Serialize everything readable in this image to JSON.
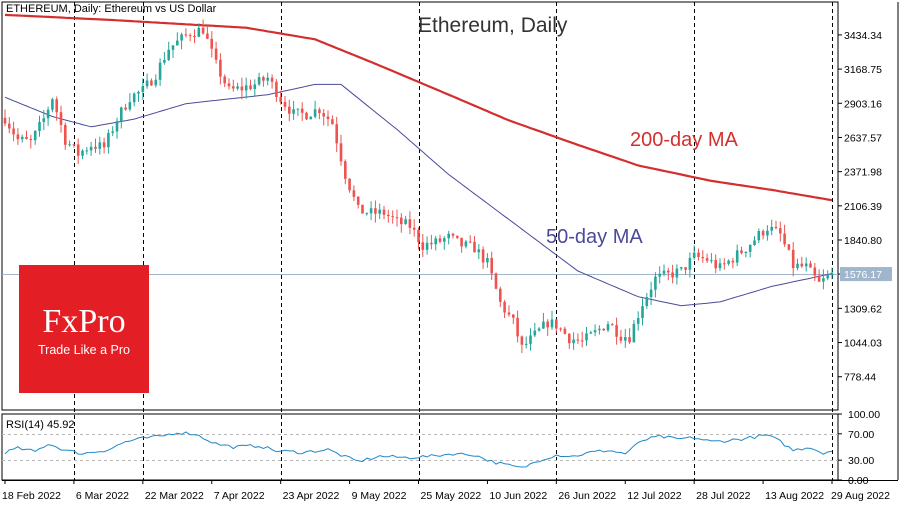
{
  "header": {
    "symbol_label": "ETHEREUM, Daily:  Ethereum vs US Dollar",
    "title": "Ethereum, Daily"
  },
  "rsi_panel": {
    "label": "RSI(14) 45.92"
  },
  "annotations": {
    "ma200_label": "200-day MA",
    "ma50_label": "50-day MA"
  },
  "logo": {
    "brand": "FxPro",
    "tagline": "Trade Like a Pro"
  },
  "colors": {
    "bull_candle": "#26a69a",
    "bear_candle": "#ef5350",
    "ma200": "#d32f2f",
    "ma50": "#4a4a9a",
    "rsi_line": "#1e88c8",
    "current_price_line": "#9fb6cc",
    "logo_bg": "#e31e24"
  },
  "chart_data": [
    {
      "type": "candlestick",
      "title": "Ethereum, Daily",
      "y_ticks": [
        "3434.34",
        "3168.75",
        "2903.16",
        "2637.57",
        "2371.98",
        "2106.39",
        "1840.80",
        "1576.17",
        "1309.62",
        "1044.03",
        "778.44"
      ],
      "ylim": [
        520,
        3690
      ],
      "current_price": "1576.17",
      "x_ticks": [
        "18 Feb 2022",
        "6 Mar 2022",
        "22 Mar 2022",
        "7 Apr 2022",
        "23 Apr 2022",
        "9 May 2022",
        "25 May 2022",
        "10 Jun 2022",
        "26 Jun 2022",
        "12 Jul 2022",
        "28 Jul 2022",
        "13 Aug 2022",
        "29 Aug 2022"
      ],
      "dashed_vertical_dates": [
        "6 Mar 2022",
        "22 Mar 2022",
        "23 Apr 2022",
        "25 May 2022",
        "26 Jun 2022",
        "28 Jul 2022",
        "29 Aug 2022"
      ],
      "close_anchors": [
        [
          "2022-02-18",
          2790
        ],
        [
          "2022-02-21",
          2620
        ],
        [
          "2022-02-24",
          2600
        ],
        [
          "2022-02-27",
          2780
        ],
        [
          "2022-03-01",
          2950
        ],
        [
          "2022-03-04",
          2620
        ],
        [
          "2022-03-07",
          2510
        ],
        [
          "2022-03-10",
          2580
        ],
        [
          "2022-03-13",
          2560
        ],
        [
          "2022-03-16",
          2780
        ],
        [
          "2022-03-19",
          2950
        ],
        [
          "2022-03-22",
          3000
        ],
        [
          "2022-03-25",
          3130
        ],
        [
          "2022-03-28",
          3330
        ],
        [
          "2022-04-02",
          3450
        ],
        [
          "2022-04-05",
          3480
        ],
        [
          "2022-04-08",
          3200
        ],
        [
          "2022-04-11",
          3000
        ],
        [
          "2022-04-14",
          3020
        ],
        [
          "2022-04-17",
          3050
        ],
        [
          "2022-04-20",
          3100
        ],
        [
          "2022-04-23",
          2940
        ],
        [
          "2022-04-26",
          2820
        ],
        [
          "2022-04-29",
          2820
        ],
        [
          "2022-05-02",
          2860
        ],
        [
          "2022-05-05",
          2750
        ],
        [
          "2022-05-08",
          2350
        ],
        [
          "2022-05-11",
          2070
        ],
        [
          "2022-05-14",
          2050
        ],
        [
          "2022-05-17",
          2050
        ],
        [
          "2022-05-20",
          1980
        ],
        [
          "2022-05-23",
          1950
        ],
        [
          "2022-05-26",
          1800
        ],
        [
          "2022-05-29",
          1820
        ],
        [
          "2022-06-01",
          1860
        ],
        [
          "2022-06-04",
          1800
        ],
        [
          "2022-06-07",
          1780
        ],
        [
          "2022-06-10",
          1660
        ],
        [
          "2022-06-13",
          1350
        ],
        [
          "2022-06-16",
          1200
        ],
        [
          "2022-06-18",
          1000
        ],
        [
          "2022-06-21",
          1100
        ],
        [
          "2022-06-24",
          1200
        ],
        [
          "2022-06-26",
          1180
        ],
        [
          "2022-06-29",
          1080
        ],
        [
          "2022-07-02",
          1050
        ],
        [
          "2022-07-05",
          1120
        ],
        [
          "2022-07-08",
          1200
        ],
        [
          "2022-07-11",
          1100
        ],
        [
          "2022-07-13",
          1090
        ],
        [
          "2022-07-16",
          1350
        ],
        [
          "2022-07-19",
          1540
        ],
        [
          "2022-07-22",
          1570
        ],
        [
          "2022-07-25",
          1600
        ],
        [
          "2022-07-28",
          1710
        ],
        [
          "2022-07-31",
          1690
        ],
        [
          "2022-08-03",
          1620
        ],
        [
          "2022-08-06",
          1700
        ],
        [
          "2022-08-09",
          1780
        ],
        [
          "2022-08-12",
          1880
        ],
        [
          "2022-08-14",
          1940
        ],
        [
          "2022-08-17",
          1880
        ],
        [
          "2022-08-20",
          1640
        ],
        [
          "2022-08-23",
          1630
        ],
        [
          "2022-08-26",
          1500
        ],
        [
          "2022-08-29",
          1576
        ]
      ],
      "ma50_anchors": [
        [
          "2022-02-18",
          2950
        ],
        [
          "2022-03-01",
          2800
        ],
        [
          "2022-03-10",
          2720
        ],
        [
          "2022-03-20",
          2780
        ],
        [
          "2022-04-01",
          2900
        ],
        [
          "2022-04-20",
          2970
        ],
        [
          "2022-05-01",
          3050
        ],
        [
          "2022-05-07",
          3050
        ],
        [
          "2022-05-20",
          2700
        ],
        [
          "2022-06-01",
          2350
        ],
        [
          "2022-06-15",
          2000
        ],
        [
          "2022-07-01",
          1600
        ],
        [
          "2022-07-15",
          1400
        ],
        [
          "2022-07-25",
          1330
        ],
        [
          "2022-08-03",
          1360
        ],
        [
          "2022-08-15",
          1480
        ],
        [
          "2022-08-29",
          1580
        ]
      ],
      "ma200_anchors": [
        [
          "2022-02-18",
          3590
        ],
        [
          "2022-03-15",
          3550
        ],
        [
          "2022-04-15",
          3490
        ],
        [
          "2022-05-01",
          3400
        ],
        [
          "2022-05-15",
          3210
        ],
        [
          "2022-06-01",
          2970
        ],
        [
          "2022-06-15",
          2770
        ],
        [
          "2022-07-01",
          2580
        ],
        [
          "2022-07-15",
          2420
        ],
        [
          "2022-08-01",
          2300
        ],
        [
          "2022-08-15",
          2230
        ],
        [
          "2022-08-29",
          2150
        ]
      ]
    },
    {
      "type": "line",
      "title": "RSI(14) 45.92",
      "y_ticks": [
        "100.00",
        "70.00",
        "30.00",
        "0.00"
      ],
      "ylim": [
        0,
        100
      ],
      "reference_levels": [
        70,
        30
      ],
      "series_anchors": [
        [
          "2022-02-18",
          42
        ],
        [
          "2022-02-21",
          48
        ],
        [
          "2022-02-25",
          43
        ],
        [
          "2022-02-28",
          55
        ],
        [
          "2022-03-04",
          45
        ],
        [
          "2022-03-08",
          40
        ],
        [
          "2022-03-14",
          46
        ],
        [
          "2022-03-18",
          58
        ],
        [
          "2022-03-22",
          63
        ],
        [
          "2022-03-26",
          66
        ],
        [
          "2022-03-30",
          72
        ],
        [
          "2022-04-03",
          70
        ],
        [
          "2022-04-08",
          55
        ],
        [
          "2022-04-12",
          50
        ],
        [
          "2022-04-18",
          52
        ],
        [
          "2022-04-22",
          44
        ],
        [
          "2022-04-28",
          42
        ],
        [
          "2022-05-04",
          46
        ],
        [
          "2022-05-08",
          35
        ],
        [
          "2022-05-11",
          28
        ],
        [
          "2022-05-16",
          36
        ],
        [
          "2022-05-22",
          34
        ],
        [
          "2022-05-28",
          36
        ],
        [
          "2022-06-02",
          40
        ],
        [
          "2022-06-07",
          38
        ],
        [
          "2022-06-11",
          28
        ],
        [
          "2022-06-15",
          22
        ],
        [
          "2022-06-18",
          18
        ],
        [
          "2022-06-22",
          30
        ],
        [
          "2022-06-26",
          38
        ],
        [
          "2022-06-30",
          36
        ],
        [
          "2022-07-04",
          42
        ],
        [
          "2022-07-08",
          45
        ],
        [
          "2022-07-12",
          40
        ],
        [
          "2022-07-16",
          60
        ],
        [
          "2022-07-20",
          66
        ],
        [
          "2022-07-24",
          62
        ],
        [
          "2022-07-28",
          64
        ],
        [
          "2022-08-01",
          58
        ],
        [
          "2022-08-05",
          60
        ],
        [
          "2022-08-09",
          63
        ],
        [
          "2022-08-14",
          68
        ],
        [
          "2022-08-17",
          58
        ],
        [
          "2022-08-20",
          45
        ],
        [
          "2022-08-24",
          50
        ],
        [
          "2022-08-27",
          40
        ],
        [
          "2022-08-29",
          46
        ]
      ]
    }
  ]
}
